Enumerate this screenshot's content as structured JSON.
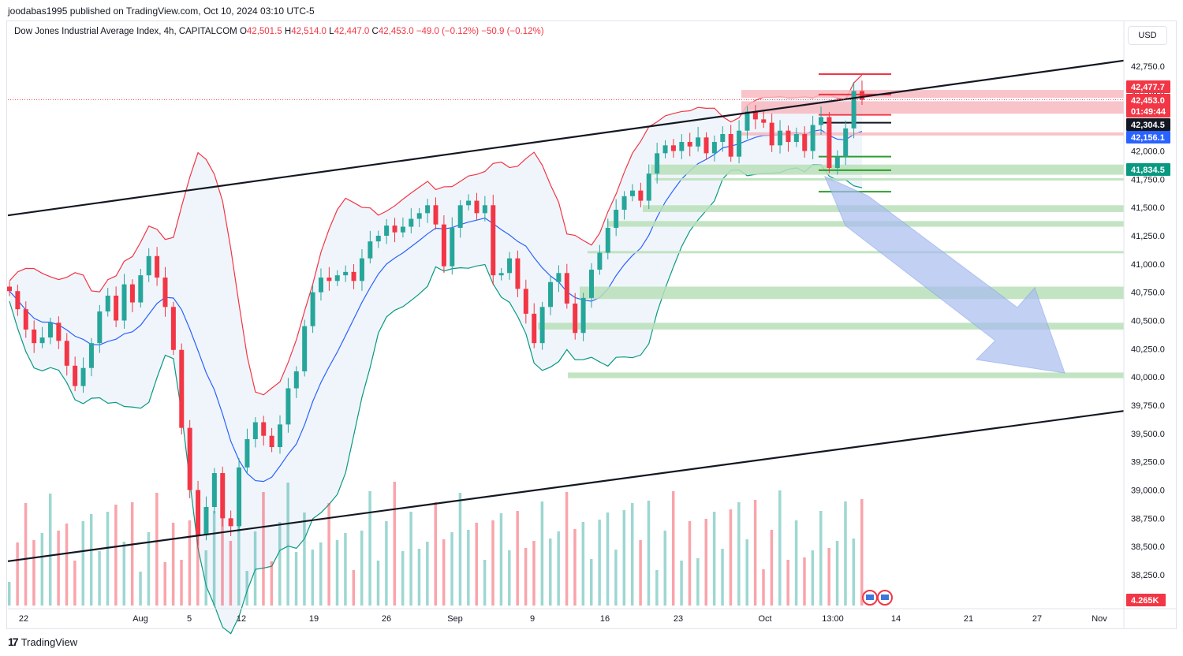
{
  "header": {
    "published": "joodabas1995 published on TradingView.com, Oct 10, 2024 03:10 UTC-5"
  },
  "legend": {
    "name": "Dow Jones Industrial Average Index, 4h, CAPITALCOM",
    "o_label": "O",
    "o_value": "42,501.5",
    "h_label": "H",
    "h_value": "42,514.0",
    "l_label": "L",
    "l_value": "42,447.0",
    "c_label": "C",
    "c_value": "42,453.0",
    "change": "−49.0 (−0.12%)",
    "change2": "−50.9 (−0.12%)"
  },
  "currency": "USD",
  "footer": {
    "brand": "TradingView"
  },
  "colors": {
    "up": "#26a69a",
    "down": "#f23645",
    "upper_band": "#f23645",
    "basis": "#2962ff",
    "lower_band": "#089981",
    "band_fill": "#e3ecf8",
    "resistance_zone": "#f7b9bf",
    "support_zone": "#b9dfb9",
    "arrow": "#a9bdf0"
  },
  "chart_data": {
    "type": "candlestick",
    "symbol": "Dow Jones Industrial Average Index",
    "interval": "4h",
    "ylim": [
      38000,
      43000
    ],
    "y_ticks": [
      "42,750.0",
      "42,500.0",
      "42,250.0",
      "42,000.0",
      "41,750.0",
      "41,500.0",
      "41,250.0",
      "41,000.0",
      "40,750.0",
      "40,500.0",
      "40,250.0",
      "40,000.0",
      "39,750.0",
      "39,500.0",
      "39,250.0",
      "39,000.0",
      "38,750.0",
      "38,500.0",
      "38,250.0"
    ],
    "x_ticks": [
      "22",
      "Aug",
      "5",
      "12",
      "19",
      "26",
      "Sep",
      "9",
      "16",
      "23",
      "Oct",
      "13:00",
      "14",
      "21",
      "27",
      "Nov"
    ],
    "price_tags": [
      {
        "label": "42,477.7",
        "value": 42477.7,
        "color": "#f23645"
      },
      {
        "label": "42,453.0",
        "value": 42453.0,
        "color": "#f23645"
      },
      {
        "label": "01:49:44",
        "value": 42400.0,
        "color": "#f23645"
      },
      {
        "label": "42,304.5",
        "value": 42304.5,
        "color": "#131722"
      },
      {
        "label": "42,156.1",
        "value": 42156.1,
        "color": "#2962ff"
      },
      {
        "label": "41,834.5",
        "value": 41834.5,
        "color": "#089981"
      }
    ],
    "volume_tag": "4.265K",
    "resistance_zones": [
      [
        42470,
        42540
      ],
      [
        42330,
        42440
      ],
      [
        42140,
        42165
      ]
    ],
    "support_zones": [
      [
        41790,
        41880
      ],
      [
        41740,
        41760
      ],
      [
        41460,
        41520
      ],
      [
        41330,
        41380
      ],
      [
        41100,
        41115
      ],
      [
        40690,
        40800
      ],
      [
        40420,
        40480
      ],
      [
        39990,
        40040
      ]
    ],
    "series": [
      {
        "name": "close",
        "values": [
          40760,
          40600,
          40420,
          40300,
          40350,
          40480,
          40320,
          40100,
          39920,
          40080,
          40300,
          40580,
          40720,
          40500,
          40820,
          40660,
          40900,
          41070,
          40880,
          40620,
          40240,
          39550,
          39000,
          38600,
          38850,
          39150,
          38750,
          38680,
          39200,
          39450,
          39600,
          39480,
          39380,
          39580,
          39900,
          40050,
          40450,
          40750,
          40880,
          40850,
          40900,
          40930,
          40850,
          41050,
          41200,
          41250,
          41340,
          41280,
          41330,
          41400,
          41450,
          41520,
          41350,
          40980,
          41320,
          41520,
          41560,
          41450,
          41520,
          40900,
          40920,
          41050,
          40780,
          40560,
          40300,
          40620,
          40840,
          40920,
          40650,
          40390,
          40700,
          40950,
          41100,
          41320,
          41480,
          41600,
          41650,
          41560,
          41800,
          41980,
          42050,
          42000,
          42080,
          42040,
          42120,
          41980,
          42080,
          42150,
          41950,
          42180,
          42350,
          42280,
          42250,
          42050,
          42180,
          42080,
          42150,
          42000,
          42230,
          42300,
          41850,
          41950,
          42200,
          42530,
          42453
        ]
      }
    ],
    "trendlines": [
      {
        "from": [
          "Jul 22",
          41430
        ],
        "to": [
          "Nov 5",
          42800
        ]
      },
      {
        "from": [
          "Jul 22",
          38370
        ],
        "to": [
          "Nov 5",
          39700
        ]
      }
    ]
  }
}
